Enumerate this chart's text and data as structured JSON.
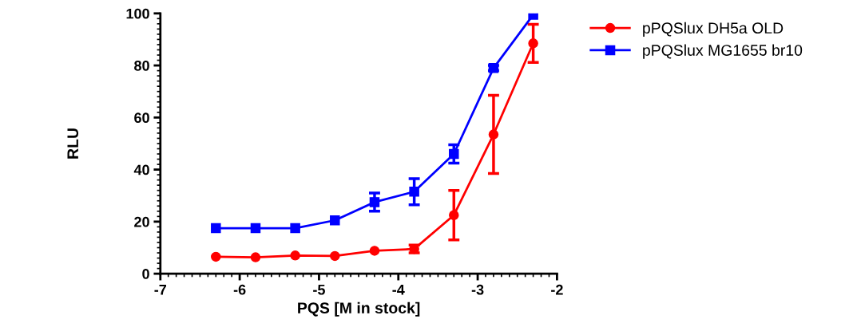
{
  "chart_data": {
    "type": "line",
    "xlabel": "PQS [M in stock]",
    "ylabel": "RLU",
    "x": [
      -6.3,
      -5.8,
      -5.3,
      -4.8,
      -4.3,
      -3.8,
      -3.3,
      -2.8,
      -2.3
    ],
    "series": [
      {
        "name": "pPQSlux DH5a OLD",
        "color": "#ff0000",
        "marker": "circle",
        "values": [
          6.5,
          6.3,
          7,
          6.8,
          8.8,
          9.5,
          22.5,
          53.5,
          88.5
        ],
        "errors": [
          null,
          null,
          null,
          null,
          null,
          1.5,
          9.5,
          15,
          7.3
        ]
      },
      {
        "name": "pPQSlux MG1655 br10",
        "color": "#0000ff",
        "marker": "square",
        "values": [
          17.5,
          17.5,
          17.5,
          20.5,
          27.5,
          31.5,
          46,
          79,
          99.5
        ],
        "errors": [
          null,
          null,
          null,
          null,
          3.5,
          5,
          3.5,
          1,
          null
        ]
      }
    ],
    "xlim": [
      -7,
      -2
    ],
    "xticks": [
      -7,
      -6,
      -5,
      -4,
      -3,
      -2
    ],
    "ylim": [
      0,
      100
    ],
    "yticks": [
      0,
      20,
      40,
      60,
      80,
      100
    ],
    "grid": false,
    "legend": "top right",
    "line_style": "solid"
  }
}
